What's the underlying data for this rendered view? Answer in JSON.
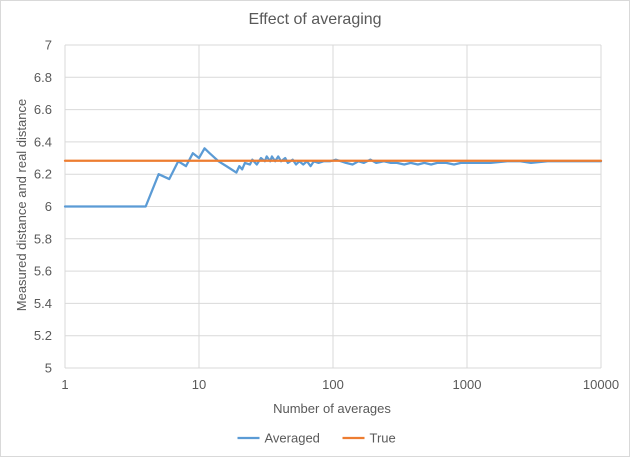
{
  "chart_data": {
    "type": "line",
    "title": "Effect of averaging",
    "xlabel": "Number of averages",
    "ylabel": "Measured distance and real distance",
    "xscale": "log",
    "xlim": [
      1,
      10000
    ],
    "ylim": [
      5,
      7
    ],
    "x_ticks": [
      1,
      10,
      100,
      1000,
      10000
    ],
    "x_tick_labels": [
      "1",
      "10",
      "100",
      "1000",
      "10000"
    ],
    "y_ticks": [
      5,
      5.2,
      5.4,
      5.6,
      5.8,
      6,
      6.2,
      6.4,
      6.6,
      6.8,
      7
    ],
    "y_tick_labels": [
      "5",
      "5.2",
      "5.4",
      "5.6",
      "5.8",
      "6",
      "6.2",
      "6.4",
      "6.6",
      "6.8",
      "7"
    ],
    "grid": true,
    "legend_position": "bottom",
    "series": [
      {
        "name": "Averaged",
        "color": "#5b9bd5",
        "points": [
          [
            1,
            6.0
          ],
          [
            2,
            6.0
          ],
          [
            3,
            6.0
          ],
          [
            4,
            6.0
          ],
          [
            5,
            6.2
          ],
          [
            6,
            6.17
          ],
          [
            7,
            6.28
          ],
          [
            8,
            6.25
          ],
          [
            9,
            6.33
          ],
          [
            10,
            6.3
          ],
          [
            11,
            6.36
          ],
          [
            12,
            6.33
          ],
          [
            14,
            6.28
          ],
          [
            16,
            6.25
          ],
          [
            19,
            6.21
          ],
          [
            20,
            6.25
          ],
          [
            21,
            6.23
          ],
          [
            22,
            6.27
          ],
          [
            24,
            6.26
          ],
          [
            25,
            6.29
          ],
          [
            27,
            6.26
          ],
          [
            29,
            6.3
          ],
          [
            31,
            6.28
          ],
          [
            32,
            6.31
          ],
          [
            34,
            6.28
          ],
          [
            35,
            6.31
          ],
          [
            37,
            6.28
          ],
          [
            39,
            6.31
          ],
          [
            41,
            6.28
          ],
          [
            44,
            6.3
          ],
          [
            46,
            6.27
          ],
          [
            50,
            6.29
          ],
          [
            53,
            6.26
          ],
          [
            56,
            6.28
          ],
          [
            60,
            6.26
          ],
          [
            64,
            6.28
          ],
          [
            68,
            6.25
          ],
          [
            72,
            6.28
          ],
          [
            78,
            6.27
          ],
          [
            85,
            6.28
          ],
          [
            95,
            6.28
          ],
          [
            105,
            6.29
          ],
          [
            115,
            6.28
          ],
          [
            125,
            6.27
          ],
          [
            140,
            6.26
          ],
          [
            155,
            6.28
          ],
          [
            170,
            6.27
          ],
          [
            190,
            6.29
          ],
          [
            210,
            6.27
          ],
          [
            240,
            6.28
          ],
          [
            270,
            6.27
          ],
          [
            300,
            6.27
          ],
          [
            340,
            6.26
          ],
          [
            380,
            6.27
          ],
          [
            430,
            6.26
          ],
          [
            480,
            6.27
          ],
          [
            540,
            6.26
          ],
          [
            600,
            6.27
          ],
          [
            700,
            6.27
          ],
          [
            800,
            6.26
          ],
          [
            900,
            6.27
          ],
          [
            1000,
            6.27
          ],
          [
            1200,
            6.27
          ],
          [
            1500,
            6.27
          ],
          [
            2000,
            6.28
          ],
          [
            2500,
            6.28
          ],
          [
            3000,
            6.27
          ],
          [
            4000,
            6.28
          ],
          [
            5000,
            6.28
          ],
          [
            6000,
            6.28
          ],
          [
            7000,
            6.28
          ],
          [
            8000,
            6.28
          ],
          [
            10000,
            6.28
          ]
        ]
      },
      {
        "name": "True",
        "color": "#ed7d31",
        "points": [
          [
            1,
            6.283
          ],
          [
            10000,
            6.283
          ]
        ]
      }
    ]
  }
}
